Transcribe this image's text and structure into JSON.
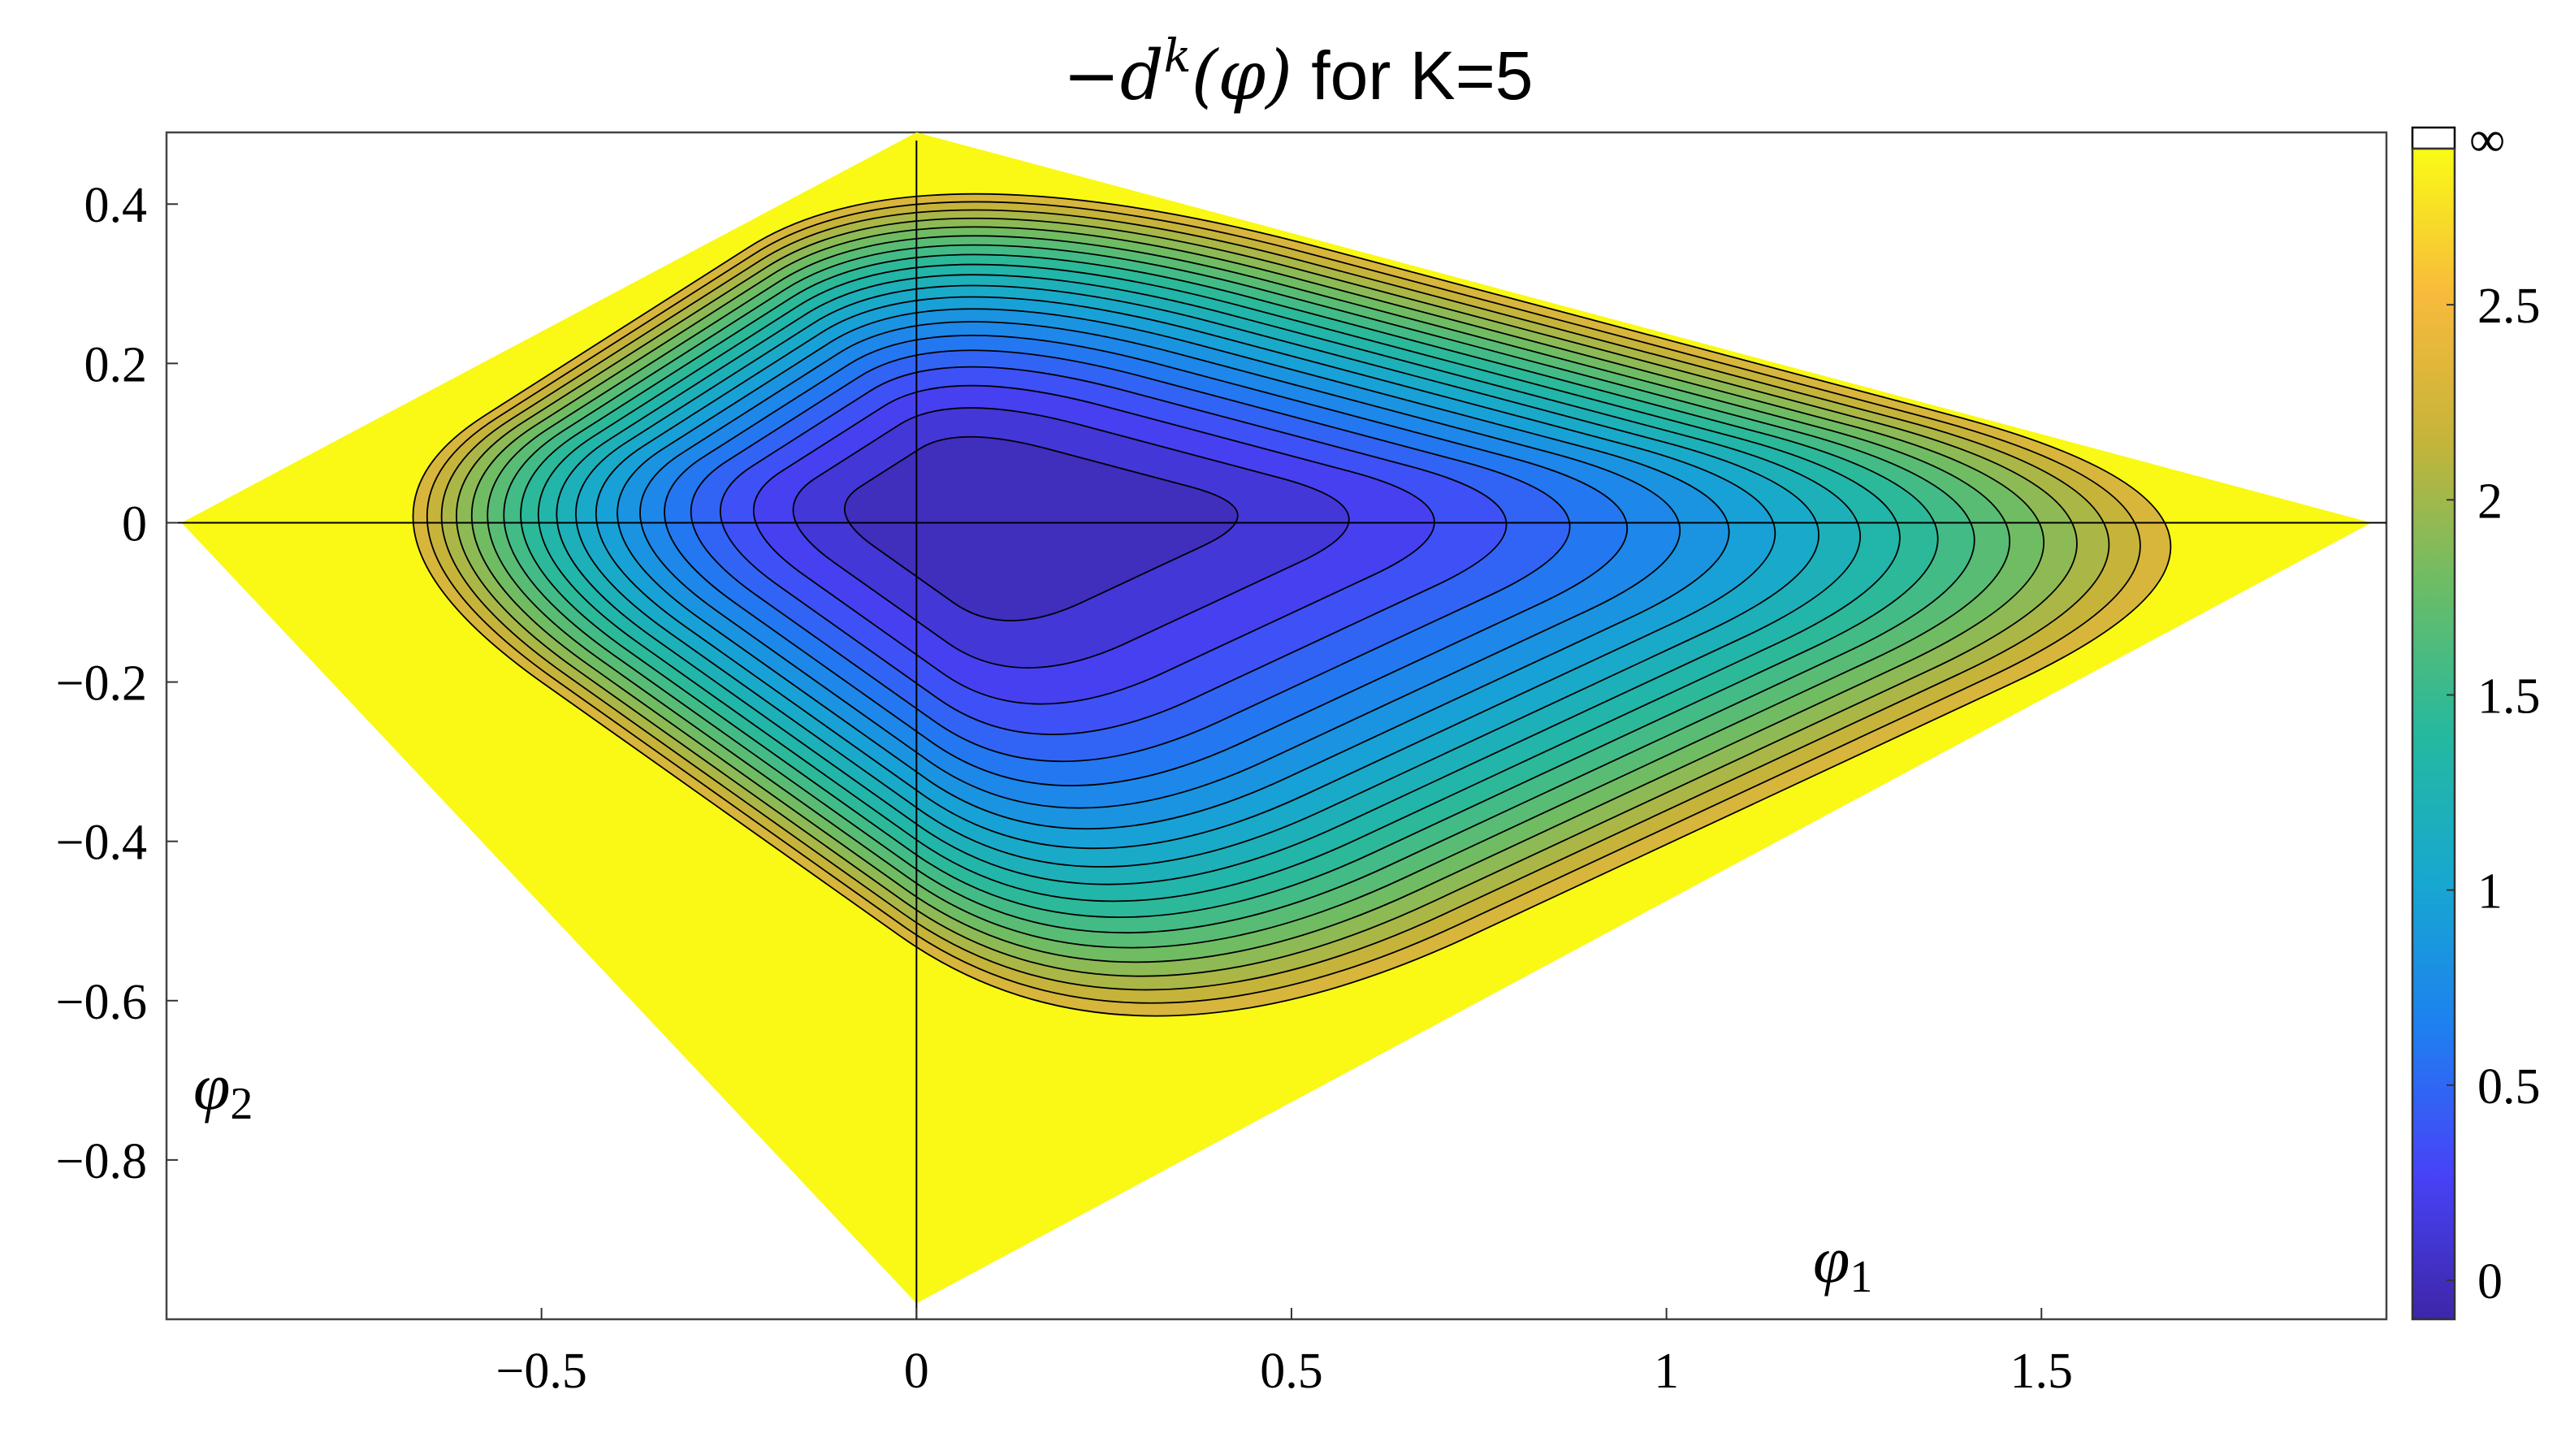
{
  "chart_data": {
    "type": "contour",
    "title_math": "−d",
    "title_sup": "k",
    "title_arg": "(φ)",
    "title_suffix": " for K=5",
    "xlabel": "φ",
    "xlabel_sub": "1",
    "ylabel": "φ",
    "ylabel_sub": "2",
    "xlim": [
      -1.0,
      1.96
    ],
    "ylim": [
      -1.0,
      0.49
    ],
    "xticks": [
      -0.5,
      0,
      0.5,
      1,
      1.5
    ],
    "xtick_labels": [
      "−0.5",
      "0",
      "0.5",
      "1",
      "1.5"
    ],
    "yticks": [
      0.4,
      0.2,
      0,
      -0.2,
      -0.4,
      -0.6,
      -0.8
    ],
    "ytick_labels": [
      "0.4",
      "0.2",
      "0",
      "−0.2",
      "−0.4",
      "−0.6",
      "−0.8"
    ],
    "colorbar": {
      "range": [
        -0.1,
        2.9
      ],
      "ticks": [
        0,
        0.5,
        1,
        1.5,
        2,
        2.5
      ],
      "tick_labels": [
        "0",
        "0.5",
        "1",
        "1.5",
        "2",
        "2.5"
      ],
      "infinity_label": "∞",
      "infinity_color": "#ffffff"
    },
    "domain_polygon": [
      [
        -0.98,
        0.0
      ],
      [
        0.0,
        0.49
      ],
      [
        1.94,
        0.0
      ],
      [
        0.0,
        -0.98
      ]
    ],
    "minimum": {
      "x": 0.07,
      "y": 0.02,
      "value": 0.0
    },
    "outside_value": "∞",
    "level_step": 0.12,
    "colormap": [
      "#3e26a8",
      "#4743f8",
      "#1e80f0",
      "#17a8d0",
      "#25b99f",
      "#6abd66",
      "#c5b43a",
      "#f8ba3c",
      "#f9fb15"
    ],
    "colors": {
      "infinity_region": "#f9f915",
      "contour_line": "#000000"
    }
  }
}
